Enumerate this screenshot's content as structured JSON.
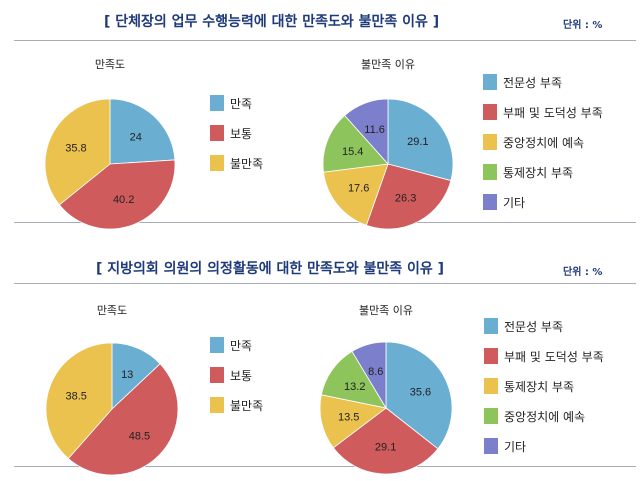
{
  "unit_label": "단위 : %",
  "colors": {
    "blue": "#6aaed2",
    "red": "#d05b5d",
    "yellow": "#ecc24f",
    "green": "#8dc45c",
    "purple": "#7c80cc",
    "title": "#1f3a7a"
  },
  "chart_data": [
    {
      "type": "pie",
      "group_title": "[ 단체장의 업무 수행능력에 대한 만족도와 불만족 이유 ]",
      "title": "만족도",
      "categories": [
        "만족",
        "보통",
        "불만족"
      ],
      "values": [
        24,
        40.2,
        35.8
      ],
      "colors": [
        "#6aaed2",
        "#d05b5d",
        "#ecc24f"
      ],
      "legend": "right"
    },
    {
      "type": "pie",
      "title": "불만족 이유",
      "categories": [
        "전문성 부족",
        "부패 및 도덕성 부족",
        "중앙정치에 예속",
        "통제장치 부족",
        "기타"
      ],
      "values": [
        29.1,
        26.3,
        17.6,
        15.4,
        11.6
      ],
      "colors": [
        "#6aaed2",
        "#d05b5d",
        "#ecc24f",
        "#8dc45c",
        "#7c80cc"
      ],
      "legend": "right"
    },
    {
      "type": "pie",
      "group_title": "[ 지방의회 의원의 의정활동에 대한 만족도와 불만족 이유 ]",
      "title": "만족도",
      "categories": [
        "만족",
        "보통",
        "불만족"
      ],
      "values": [
        13,
        48.5,
        38.5
      ],
      "colors": [
        "#6aaed2",
        "#d05b5d",
        "#ecc24f"
      ],
      "legend": "right"
    },
    {
      "type": "pie",
      "title": "불만족 이유",
      "categories": [
        "전문성 부족",
        "부패 및 도덕성 부족",
        "통제장치 부족",
        "중앙정치에 예속",
        "기타"
      ],
      "values": [
        35.6,
        29.1,
        13.5,
        13.2,
        8.6
      ],
      "colors": [
        "#6aaed2",
        "#d05b5d",
        "#ecc24f",
        "#8dc45c",
        "#7c80cc"
      ],
      "legend": "right"
    }
  ]
}
